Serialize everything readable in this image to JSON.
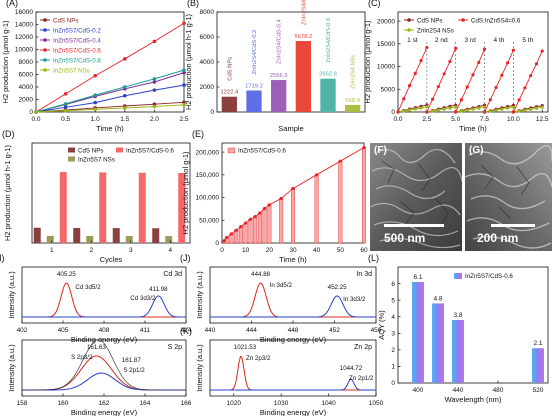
{
  "chart_data": [
    {
      "panel": "(A)",
      "type": "line",
      "xlabel": "Time (h)",
      "ylabel": "H2 production (µmol g-1)",
      "xlim": [
        0,
        2.5
      ],
      "ylim": [
        0,
        16000
      ],
      "xticks": [
        0.0,
        0.5,
        1.0,
        1.5,
        2.0,
        2.5
      ],
      "yticks": [
        0,
        2000,
        4000,
        6000,
        8000,
        10000,
        12000,
        14000,
        16000
      ],
      "legend": "top-left",
      "x": [
        0,
        0.5,
        1.0,
        1.5,
        2.0,
        2.5
      ],
      "series": [
        {
          "name": "CdS NPs",
          "color": "#8B2323",
          "marker": "circle",
          "values": [
            0,
            300,
            650,
            950,
            1250,
            1550
          ]
        },
        {
          "name": "InZn5S7/CdS-0.2",
          "color": "#2B3FC9",
          "marker": "circle",
          "values": [
            0,
            750,
            1500,
            2600,
            3500,
            4300
          ]
        },
        {
          "name": "InZn5S7/CdS-0.4",
          "color": "#7B2F9E",
          "marker": "circle",
          "values": [
            0,
            1200,
            2500,
            3700,
            4800,
            6300
          ]
        },
        {
          "name": "InZn5S7/CdS-0.6",
          "color": "#E8262A",
          "marker": "circle",
          "values": [
            0,
            2900,
            5800,
            8500,
            11300,
            14200
          ]
        },
        {
          "name": "InZn5S7/CdS-0.8",
          "color": "#1A9E8F",
          "marker": "circle",
          "values": [
            0,
            1300,
            2700,
            4000,
            5300,
            6700
          ]
        },
        {
          "name": "InZn5S7 NSs",
          "color": "#9AB814",
          "marker": "circle",
          "values": [
            0,
            200,
            420,
            650,
            880,
            1150
          ]
        }
      ]
    },
    {
      "panel": "(B)",
      "type": "bar",
      "xlabel": "Sample",
      "ylabel": "H2 production (µmol h-1 g-1)",
      "ylim": [
        0,
        8000
      ],
      "yticks": [
        0,
        2000,
        4000,
        6000,
        8000
      ],
      "categories": [
        "CdS NPs",
        "ZnIn2S4/CdS-0.2",
        "ZnIn2S4/CdS-0.4",
        "ZnIn2S4/CdS-0.6",
        "ZnIn2S4/CdS-0.8",
        "ZnIn2S4 NSs"
      ],
      "values": [
        1222.4,
        1719.2,
        2556.3,
        5678.2,
        2662.8,
        568.4
      ],
      "value_labels": [
        "1222.4",
        "1719.2",
        "2556.3",
        "5678.2",
        "2662.8",
        "568.4"
      ],
      "colors": [
        "#8B4040",
        "#5F6FE6",
        "#9B5FB8",
        "#E8483A",
        "#4FB3A6",
        "#A9C042"
      ]
    },
    {
      "panel": "(C)",
      "type": "line",
      "xlabel": "Time (h)",
      "ylabel": "H2 production (µmol g-1)",
      "xlim": [
        0,
        13
      ],
      "ylim": [
        0,
        22000
      ],
      "xticks": [
        0.0,
        2.5,
        5.0,
        7.5,
        10.0,
        12.5
      ],
      "yticks": [
        0,
        5000,
        10000,
        15000,
        20000
      ],
      "legend": "top",
      "cycle_labels": [
        "1 st",
        "2 nd",
        "3 rd",
        "4 th",
        "5 th"
      ],
      "cycle_breaks": [
        2.5,
        5.0,
        7.5,
        10.0
      ],
      "series": [
        {
          "name": "CdS NPs",
          "color": "#8B2323",
          "x": [
            0,
            0.5,
            1,
            1.5,
            2,
            2.5,
            2.5,
            3,
            3.5,
            4,
            4.5,
            5,
            5,
            5.5,
            6,
            6.5,
            7,
            7.5,
            7.5,
            8,
            8.5,
            9,
            9.5,
            10,
            10,
            10.5,
            11,
            11.5,
            12,
            12.5
          ],
          "values": [
            0,
            300,
            650,
            950,
            1250,
            1550,
            0,
            300,
            650,
            950,
            1250,
            1500,
            0,
            300,
            620,
            920,
            1200,
            1500,
            0,
            290,
            610,
            900,
            1180,
            1450,
            0,
            280,
            600,
            880,
            1150,
            1400
          ]
        },
        {
          "name": "ZnIn2S4 NSs",
          "color": "#9AB814",
          "x": [
            0,
            0.5,
            1,
            1.5,
            2,
            2.5,
            2.5,
            3,
            3.5,
            4,
            4.5,
            5,
            5,
            5.5,
            6,
            6.5,
            7,
            7.5,
            7.5,
            8,
            8.5,
            9,
            9.5,
            10,
            10,
            10.5,
            11,
            11.5,
            12,
            12.5
          ],
          "values": [
            0,
            200,
            420,
            650,
            880,
            1150,
            0,
            200,
            420,
            640,
            860,
            1100,
            0,
            190,
            410,
            630,
            850,
            1080,
            0,
            190,
            400,
            620,
            840,
            1060,
            0,
            180,
            390,
            610,
            820,
            1040
          ]
        },
        {
          "name": "CdS:InZn5S4=0.6",
          "color": "#E8262A",
          "x": [
            0,
            0.5,
            1,
            1.5,
            2,
            2.5,
            2.5,
            3,
            3.5,
            4,
            4.5,
            5,
            5,
            5.5,
            6,
            6.5,
            7,
            7.5,
            7.5,
            8,
            8.5,
            9,
            9.5,
            10,
            10,
            10.5,
            11,
            11.5,
            12,
            12.5
          ],
          "values": [
            0,
            2900,
            5800,
            8500,
            11300,
            14200,
            0,
            2800,
            5600,
            8400,
            11100,
            14000,
            0,
            2700,
            5500,
            8200,
            10900,
            13800,
            0,
            2700,
            5400,
            8100,
            10800,
            13600,
            0,
            2650,
            5300,
            8000,
            10600,
            13400
          ]
        }
      ]
    },
    {
      "panel": "(D)",
      "type": "bar",
      "xlabel": "Cycles",
      "ylabel": "H2 production (µmol h-1 g-1)",
      "ylim": [
        0,
        8000
      ],
      "categories": [
        "1",
        "2",
        "3",
        "4"
      ],
      "legend": "top",
      "series": [
        {
          "name": "CdS NPs",
          "color": "#8B4040",
          "values": [
            1222,
            1200,
            1190,
            1180
          ]
        },
        {
          "name": "InZn5S7 NSs",
          "color": "#9C9A5A",
          "values": [
            568,
            560,
            555,
            550
          ]
        },
        {
          "name": "InZn5S7/CdS-0.6",
          "color": "#F4686A",
          "values": [
            5678,
            5650,
            5620,
            5600
          ]
        }
      ]
    },
    {
      "panel": "(E)",
      "type": "bar",
      "xlabel": "Time (h)",
      "ylabel": "H2 production (µmol g-1)",
      "xlim": [
        0,
        60
      ],
      "xticks": [
        0,
        10,
        20,
        30,
        40,
        50,
        60
      ],
      "ylim": [
        0,
        220000
      ],
      "yticks": [
        0,
        50000,
        100000,
        150000,
        200000
      ],
      "ytick_labels": [
        "0",
        "50,000",
        "100,000",
        "150,000",
        "200,000"
      ],
      "legend": "top-left",
      "series": [
        {
          "name": "InZn5S7/CdS-0.6",
          "color": "#E8262A",
          "x": [
            1,
            2,
            4,
            6,
            8,
            10,
            12,
            14,
            16,
            18,
            20,
            25,
            30,
            40,
            50,
            60
          ],
          "values": [
            5000,
            12000,
            20000,
            28000,
            36000,
            44000,
            52000,
            58000,
            66000,
            76000,
            84000,
            98000,
            120000,
            150000,
            180000,
            210000
          ]
        }
      ]
    },
    {
      "panel": "(H)",
      "type": "line",
      "xlabel": "Binding energy (eV)",
      "ylabel": "Intensity (a.u.)",
      "xlim": [
        402,
        414
      ],
      "xticks": [
        402,
        405,
        408,
        411,
        414
      ],
      "title": "Cd 3d",
      "peaks": [
        {
          "label": "Cd 3d5/2",
          "position": 405.25,
          "label_value": "405.25",
          "color": "#D8291F"
        },
        {
          "label": "Cd 3d3/2",
          "position": 411.98,
          "label_value": "411.98",
          "color": "#2740C8"
        }
      ]
    },
    {
      "panel": "(I)",
      "type": "line",
      "xlabel": "Binding energy (eV)",
      "ylabel": "Intensity (a.u.)",
      "xlim": [
        158,
        166
      ],
      "xticks": [
        158,
        160,
        162,
        164,
        166
      ],
      "title": "S 2p",
      "peaks": [
        {
          "label": "S 2p3/2",
          "position": 161.63,
          "label_value": "161.63",
          "color": "#D8291F"
        },
        {
          "label": "S 2p1/2",
          "position": 161.87,
          "label_value": "161.87",
          "color": "#2740C8"
        }
      ]
    },
    {
      "panel": "(J)",
      "type": "line",
      "xlabel": "Binding energy (eV)",
      "ylabel": "Intensity (a.u.)",
      "xlim": [
        440,
        456
      ],
      "xticks": [
        440,
        444,
        448,
        452,
        456
      ],
      "title": "In 3d",
      "peaks": [
        {
          "label": "In 3d5/2",
          "position": 444.88,
          "label_value": "444.88",
          "color": "#D8291F"
        },
        {
          "label": "In 3d3/2",
          "position": 452.25,
          "label_value": "452.25",
          "color": "#2740C8"
        }
      ]
    },
    {
      "panel": "(K)",
      "type": "line",
      "xlabel": "Binding energy (eV)",
      "ylabel": "Intensity (a.u.)",
      "xlim": [
        1015,
        1050
      ],
      "xticks": [
        1020,
        1030,
        1040,
        1050
      ],
      "title": "Zn 2p",
      "peaks": [
        {
          "label": "Zn 2p3/2",
          "position": 1021.53,
          "label_value": "1021.53",
          "color": "#D8291F"
        },
        {
          "label": "Zn 2p1/2",
          "position": 1044.72,
          "label_value": "1044.72",
          "color": "#2740C8"
        }
      ]
    },
    {
      "panel": "(L)",
      "type": "bar",
      "xlabel": "Wavelength (nm)",
      "ylabel": "AQY (%)",
      "xlim": [
        380,
        530
      ],
      "xticks": [
        400,
        440,
        480,
        520
      ],
      "ylim": [
        0,
        7
      ],
      "yticks": [
        0,
        1,
        2,
        3,
        4,
        5,
        6
      ],
      "legend": "top-right",
      "series": [
        {
          "name": "InZn5S7/CdS-0.6",
          "color": "#6FA0F0",
          "x": [
            400,
            420,
            440,
            520
          ],
          "values": [
            6.1,
            4.8,
            3.8,
            2.1
          ],
          "value_labels": [
            "6.1",
            "4.8",
            "3.8",
            "2.1"
          ]
        }
      ]
    }
  ],
  "images": [
    {
      "panel": "(F)",
      "scale_bar": "500 nm"
    },
    {
      "panel": "(G)",
      "scale_bar": "200 nm"
    }
  ]
}
